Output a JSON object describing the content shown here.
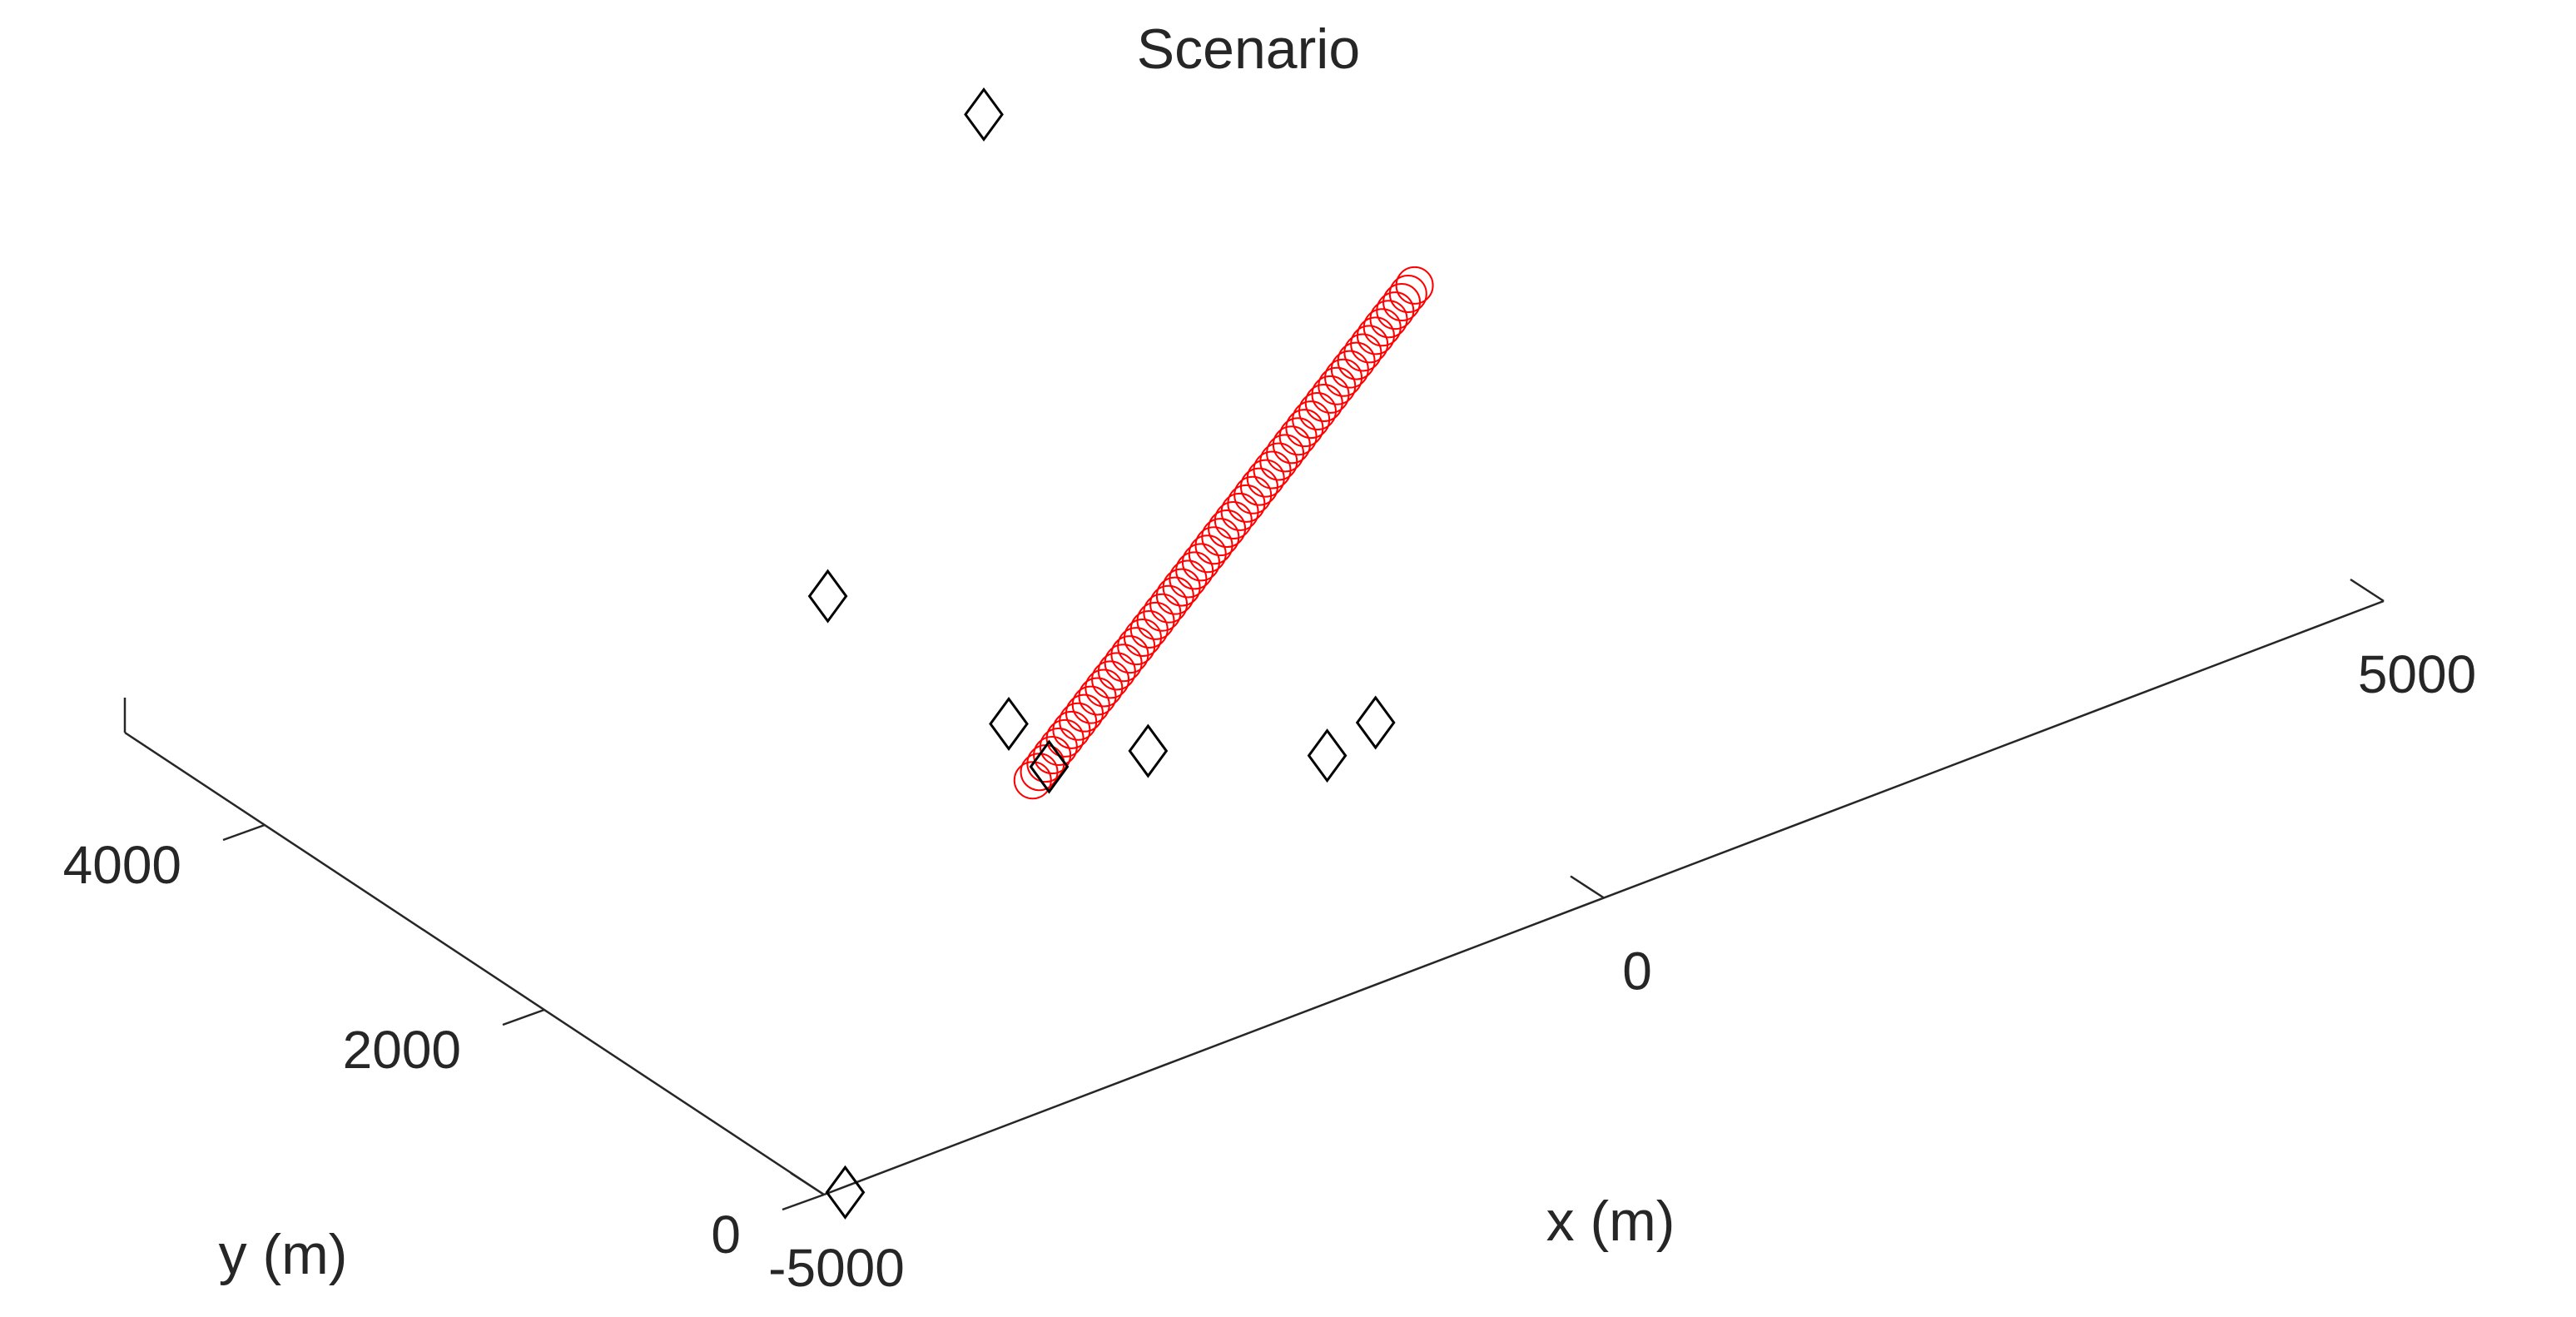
{
  "chart_data": {
    "type": "scatter",
    "title": "Scenario",
    "xlabel": "x (m)",
    "ylabel": "y (m)",
    "x_ticks": [
      "-5000",
      "0",
      "5000"
    ],
    "y_ticks": [
      "0",
      "2000",
      "4000"
    ],
    "view": "3-D perspective",
    "grid": false,
    "series": [
      {
        "marker": "diamond",
        "color": "#000000",
        "points": [
          {
            "x": -4900,
            "y": -40
          },
          {
            "x": -1350,
            "y": 2750
          },
          {
            "x": -1450,
            "y": 2350
          },
          {
            "x": -950,
            "y": 2200
          },
          {
            "x": -1300,
            "y": 4100
          },
          {
            "x": 2300,
            "y": 7000
          },
          {
            "x": -250,
            "y": 1700
          },
          {
            "x": 150,
            "y": 1800
          }
        ]
      },
      {
        "marker": "circle",
        "color": "#ff0000",
        "points_count": 60,
        "start": {
          "x": -1600,
          "y": 2300
        },
        "end": {
          "x": 3000,
          "y": 4700
        }
      }
    ]
  }
}
